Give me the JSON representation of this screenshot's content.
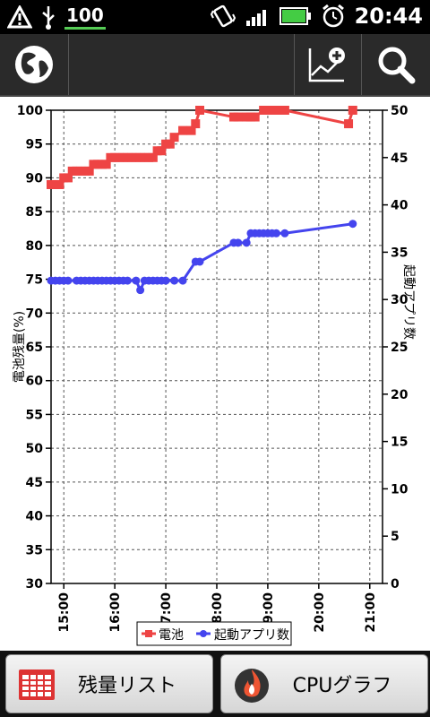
{
  "status_bar": {
    "badge": "100",
    "time": "20:44",
    "icons": [
      "warning-icon",
      "usb-icon",
      "vibrate-icon",
      "signal-icon",
      "battery-icon",
      "alarm-icon"
    ]
  },
  "action_bar": {
    "icons": [
      "globe-icon",
      "add-chart-icon",
      "search-icon"
    ]
  },
  "chart_data": {
    "type": "line",
    "ylabel": "電池残量(%)",
    "y2label": "起動アプリ数",
    "ylim": [
      30,
      100
    ],
    "y2lim": [
      0,
      50
    ],
    "yticks": [
      "30",
      "35",
      "40",
      "45",
      "50",
      "55",
      "60",
      "65",
      "70",
      "75",
      "80",
      "85",
      "90",
      "95",
      "100"
    ],
    "y2ticks": [
      "0",
      "5",
      "10",
      "15",
      "20",
      "25",
      "30",
      "35",
      "40",
      "45",
      "50"
    ],
    "xticks": [
      "15:00",
      "16:00",
      "17:00",
      "18:00",
      "19:00",
      "20:00",
      "21:00"
    ],
    "xlim": [
      "14:45",
      "21:15"
    ],
    "legend_position": "bottom",
    "grid": true,
    "series": [
      {
        "name": "電池",
        "axis": "left",
        "color": "#ee4444",
        "marker": "square",
        "x": [
          "14:45",
          "14:50",
          "14:55",
          "15:00",
          "15:05",
          "15:10",
          "15:15",
          "15:20",
          "15:25",
          "15:30",
          "15:35",
          "15:40",
          "15:45",
          "15:50",
          "15:55",
          "16:00",
          "16:05",
          "16:10",
          "16:15",
          "16:20",
          "16:25",
          "16:30",
          "16:35",
          "16:40",
          "16:45",
          "16:50",
          "16:55",
          "17:00",
          "17:05",
          "17:10",
          "17:20",
          "17:30",
          "17:35",
          "17:40",
          "18:20",
          "18:25",
          "18:35",
          "18:40",
          "18:45",
          "18:55",
          "19:00",
          "19:10",
          "19:20",
          "20:35",
          "20:40"
        ],
        "y": [
          89,
          89,
          89,
          90,
          90,
          91,
          91,
          91,
          91,
          91,
          92,
          92,
          92,
          92,
          93,
          93,
          93,
          93,
          93,
          93,
          93,
          93,
          93,
          93,
          93,
          94,
          94,
          95,
          95,
          96,
          97,
          97,
          98,
          100,
          99,
          99,
          99,
          99,
          99,
          100,
          100,
          100,
          100,
          98,
          100
        ]
      },
      {
        "name": "起動アプリ数",
        "axis": "right",
        "color": "#4444ee",
        "marker": "circle",
        "x": [
          "14:45",
          "14:50",
          "14:55",
          "15:00",
          "15:05",
          "15:15",
          "15:20",
          "15:25",
          "15:30",
          "15:35",
          "15:40",
          "15:45",
          "15:50",
          "15:55",
          "16:00",
          "16:05",
          "16:10",
          "16:15",
          "16:25",
          "16:30",
          "16:35",
          "16:40",
          "16:45",
          "16:50",
          "16:55",
          "17:00",
          "17:10",
          "17:20",
          "17:35",
          "17:40",
          "18:20",
          "18:25",
          "18:35",
          "18:40",
          "18:45",
          "18:50",
          "18:55",
          "19:00",
          "19:05",
          "19:10",
          "19:20",
          "20:40"
        ],
        "y": [
          32,
          32,
          32,
          32,
          32,
          32,
          32,
          32,
          32,
          32,
          32,
          32,
          32,
          32,
          32,
          32,
          32,
          32,
          32,
          31,
          32,
          32,
          32,
          32,
          32,
          32,
          32,
          32,
          34,
          34,
          36,
          36,
          36,
          37,
          37,
          37,
          37,
          37,
          37,
          37,
          37,
          38
        ]
      }
    ]
  },
  "bottom_buttons": {
    "list_label": "残量リスト",
    "cpu_label": "CPUグラフ"
  }
}
